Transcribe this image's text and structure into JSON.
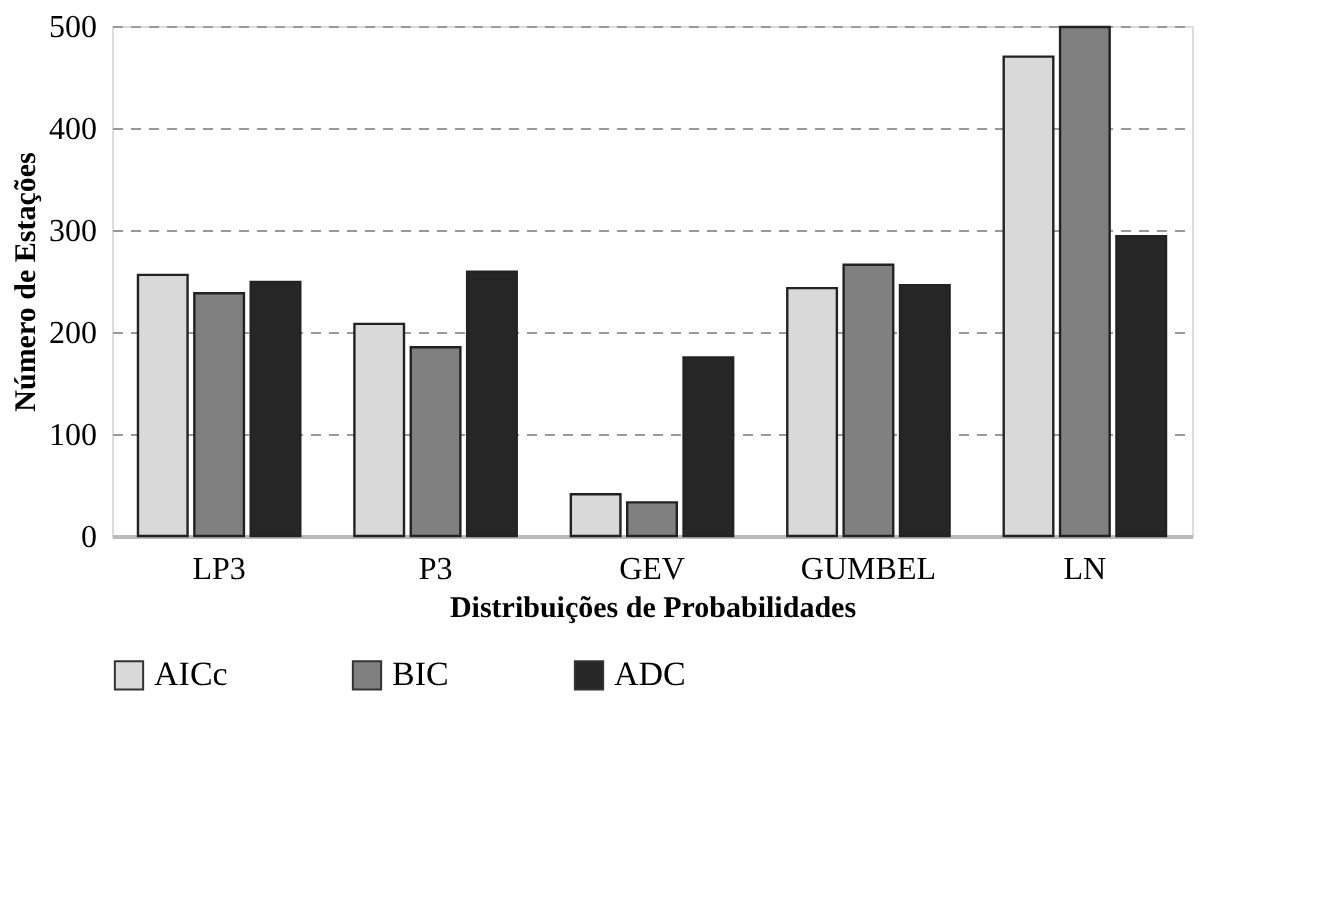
{
  "chart_data": {
    "type": "bar",
    "xlabel": "Distribuições de Probabilidades",
    "ylabel": "Número de Estações",
    "categories": [
      "LP3",
      "P3",
      "GEV",
      "GUMBEL",
      "LN"
    ],
    "series": [
      {
        "name": "AICc",
        "color": "#d9d9d9",
        "values": [
          256,
          208,
          41,
          243,
          470
        ]
      },
      {
        "name": "BIC",
        "color": "#808080",
        "values": [
          238,
          185,
          33,
          266,
          499
        ]
      },
      {
        "name": "ADC",
        "color": "#262626",
        "values": [
          249,
          259,
          175,
          246,
          294
        ]
      }
    ],
    "ylim": [
      0,
      500
    ],
    "yticks": [
      0,
      100,
      200,
      300,
      400,
      500
    ],
    "grid": "y",
    "line_style": "dashed",
    "legend": "bottom"
  }
}
